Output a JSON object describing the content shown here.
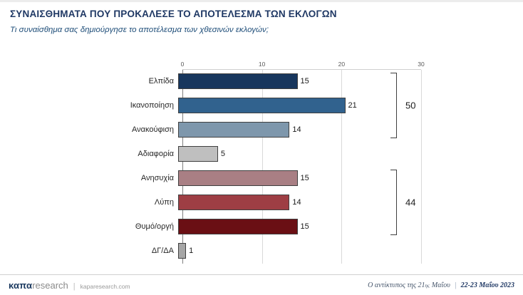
{
  "header": {
    "title": "ΣΥΝΑΙΣΘΗΜΑΤΑ ΠΟΥ ΠΡΟΚΑΛΕΣΕ ΤΟ ΑΠΟΤΕΛΕΣΜΑ ΤΩΝ ΕΚΛΟΓΩΝ",
    "subtitle": "Τι συναίσθημα σας δημιούργησε το αποτέλεσμα των χθεσινών εκλογών;"
  },
  "chart_data": {
    "type": "bar",
    "orientation": "horizontal",
    "title": "ΣΥΝΑΙΣΘΗΜΑΤΑ ΠΟΥ ΠΡΟΚΑΛΕΣΕ ΤΟ ΑΠΟΤΕΛΕΣΜΑ ΤΩΝ ΕΚΛΟΓΩΝ",
    "subtitle": "Τι συναίσθημα σας δημιούργησε το αποτέλεσμα των χθεσινών εκλογών;",
    "categories": [
      "Ελπίδα",
      "Ικανοποίηση",
      "Ανακούφιση",
      "Αδιαφορία",
      "Ανησυχία",
      "Λύπη",
      "Θυμό/οργή",
      "ΔΓ/ΔΑ"
    ],
    "values": [
      15,
      21,
      14,
      5,
      15,
      14,
      15,
      1
    ],
    "colors": [
      "#17365d",
      "#31628e",
      "#7e97ac",
      "#bfbfbf",
      "#a97f84",
      "#9e3e44",
      "#6a0f14",
      "#a6a6a6"
    ],
    "xlim": [
      0,
      30
    ],
    "x_ticks": [
      0,
      10,
      20,
      30
    ],
    "xlabel": "",
    "ylabel": "",
    "grid": true,
    "legend": false,
    "groups": [
      {
        "label": "50",
        "from": 0,
        "to": 2
      },
      {
        "label": "44",
        "from": 4,
        "to": 6
      }
    ]
  },
  "footer": {
    "brand_kapa": "καπα",
    "brand_research": "research",
    "brand_sep": "|",
    "site": "kaparesearch.com",
    "context_prefix": "Ο αντίκτυπος της 21",
    "context_sup": "ης",
    "context_suffix": "Μαΐου",
    "sep": "|",
    "date": "22-23 Μαΐου 2023"
  }
}
